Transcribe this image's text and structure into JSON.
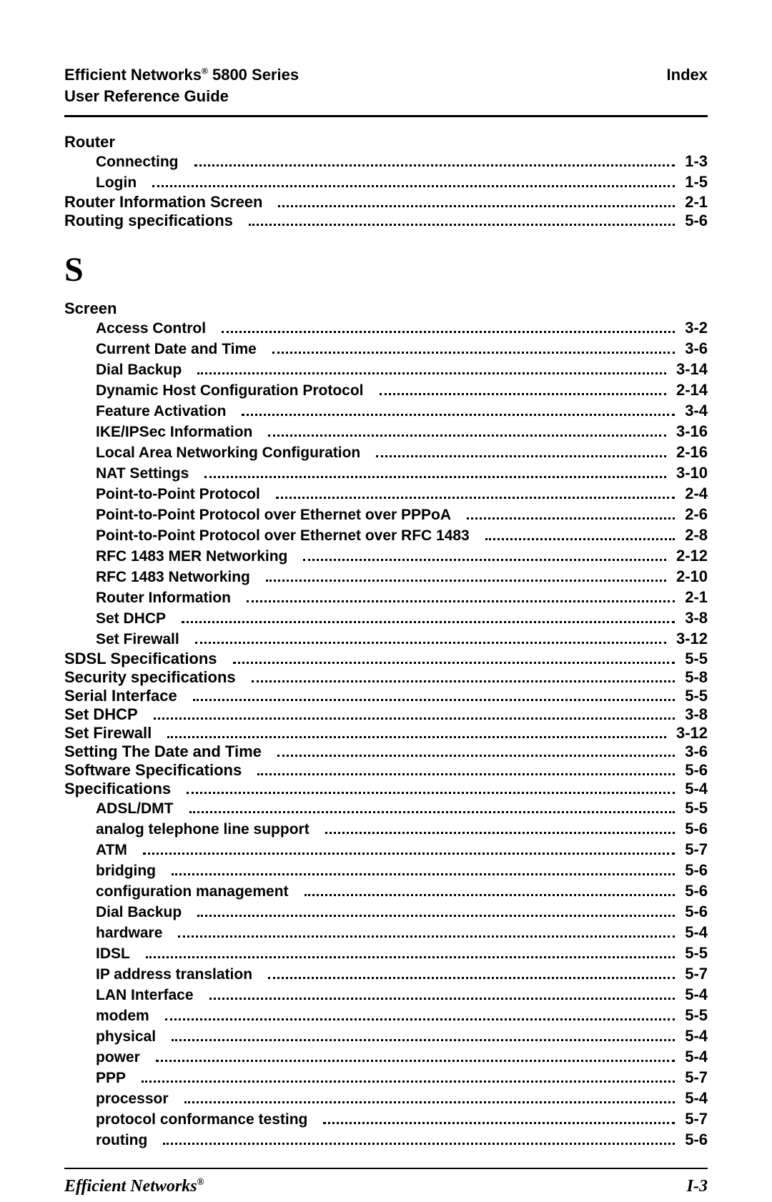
{
  "header": {
    "title_line1_a": "Efficient Networks",
    "title_line1_b": " 5800 Series",
    "title_line2": "User Reference Guide",
    "right": "Index",
    "reg": "®"
  },
  "sections": [
    {
      "type": "entry",
      "level": 1,
      "term": "Router",
      "page": ""
    },
    {
      "type": "entry",
      "level": 2,
      "term": "Connecting",
      "page": "1-3"
    },
    {
      "type": "entry",
      "level": 2,
      "term": "Login",
      "page": "1-5"
    },
    {
      "type": "entry",
      "level": 1,
      "term": "Router Information Screen",
      "page": "2-1"
    },
    {
      "type": "entry",
      "level": 1,
      "term": "Routing specifications",
      "page": "5-6"
    },
    {
      "type": "letter",
      "text": "S"
    },
    {
      "type": "entry",
      "level": 1,
      "term": "Screen",
      "page": ""
    },
    {
      "type": "entry",
      "level": 2,
      "term": "Access Control",
      "page": "3-2"
    },
    {
      "type": "entry",
      "level": 2,
      "term": "Current Date and Time",
      "page": "3-6"
    },
    {
      "type": "entry",
      "level": 2,
      "term": "Dial Backup",
      "page": "3-14"
    },
    {
      "type": "entry",
      "level": 2,
      "term": "Dynamic Host Configuration Protocol",
      "page": "2-14"
    },
    {
      "type": "entry",
      "level": 2,
      "term": "Feature Activation",
      "page": "3-4"
    },
    {
      "type": "entry",
      "level": 2,
      "term": "IKE/IPSec Information",
      "page": "3-16"
    },
    {
      "type": "entry",
      "level": 2,
      "term": "Local Area Networking Configuration",
      "page": "2-16"
    },
    {
      "type": "entry",
      "level": 2,
      "term": "NAT Settings",
      "page": "3-10"
    },
    {
      "type": "entry",
      "level": 2,
      "term": "Point-to-Point Protocol",
      "page": "2-4"
    },
    {
      "type": "entry",
      "level": 2,
      "term": "Point-to-Point Protocol over Ethernet over PPPoA",
      "page": "2-6"
    },
    {
      "type": "entry",
      "level": 2,
      "term": "Point-to-Point Protocol over Ethernet over RFC 1483",
      "page": "2-8"
    },
    {
      "type": "entry",
      "level": 2,
      "term": "RFC 1483 MER Networking",
      "page": "2-12"
    },
    {
      "type": "entry",
      "level": 2,
      "term": "RFC 1483 Networking",
      "page": "2-10"
    },
    {
      "type": "entry",
      "level": 2,
      "term": "Router Information",
      "page": "2-1"
    },
    {
      "type": "entry",
      "level": 2,
      "term": "Set DHCP",
      "page": "3-8"
    },
    {
      "type": "entry",
      "level": 2,
      "term": "Set Firewall",
      "page": "3-12"
    },
    {
      "type": "entry",
      "level": 1,
      "term": "SDSL Specifications",
      "page": "5-5"
    },
    {
      "type": "entry",
      "level": 1,
      "term": "Security specifications",
      "page": "5-8"
    },
    {
      "type": "entry",
      "level": 1,
      "term": "Serial Interface",
      "page": "5-5"
    },
    {
      "type": "entry",
      "level": 1,
      "term": "Set DHCP",
      "page": "3-8"
    },
    {
      "type": "entry",
      "level": 1,
      "term": "Set Firewall",
      "page": "3-12"
    },
    {
      "type": "entry",
      "level": 1,
      "term": "Setting The Date and Time",
      "page": "3-6"
    },
    {
      "type": "entry",
      "level": 1,
      "term": "Software Specifications",
      "page": "5-6"
    },
    {
      "type": "entry",
      "level": 1,
      "term": "Specifications",
      "page": "5-4"
    },
    {
      "type": "entry",
      "level": 2,
      "term": "ADSL/DMT",
      "page": "5-5"
    },
    {
      "type": "entry",
      "level": 2,
      "term": "analog telephone line support",
      "page": "5-6"
    },
    {
      "type": "entry",
      "level": 2,
      "term": "ATM",
      "page": "5-7"
    },
    {
      "type": "entry",
      "level": 2,
      "term": "bridging",
      "page": "5-6"
    },
    {
      "type": "entry",
      "level": 2,
      "term": "configuration management",
      "page": "5-6"
    },
    {
      "type": "entry",
      "level": 2,
      "term": "Dial Backup",
      "page": "5-6"
    },
    {
      "type": "entry",
      "level": 2,
      "term": "hardware",
      "page": "5-4"
    },
    {
      "type": "entry",
      "level": 2,
      "term": "IDSL",
      "page": "5-5"
    },
    {
      "type": "entry",
      "level": 2,
      "term": "IP address translation",
      "page": "5-7"
    },
    {
      "type": "entry",
      "level": 2,
      "term": "LAN Interface",
      "page": "5-4"
    },
    {
      "type": "entry",
      "level": 2,
      "term": "modem",
      "page": "5-5"
    },
    {
      "type": "entry",
      "level": 2,
      "term": "physical",
      "page": "5-4"
    },
    {
      "type": "entry",
      "level": 2,
      "term": "power",
      "page": "5-4"
    },
    {
      "type": "entry",
      "level": 2,
      "term": "PPP",
      "page": "5-7"
    },
    {
      "type": "entry",
      "level": 2,
      "term": "processor",
      "page": "5-4"
    },
    {
      "type": "entry",
      "level": 2,
      "term": "protocol conformance testing",
      "page": "5-7"
    },
    {
      "type": "entry",
      "level": 2,
      "term": "routing",
      "page": "5-6"
    }
  ],
  "footer": {
    "brand": "Efficient Networks",
    "reg": "®",
    "page": "I-3"
  }
}
